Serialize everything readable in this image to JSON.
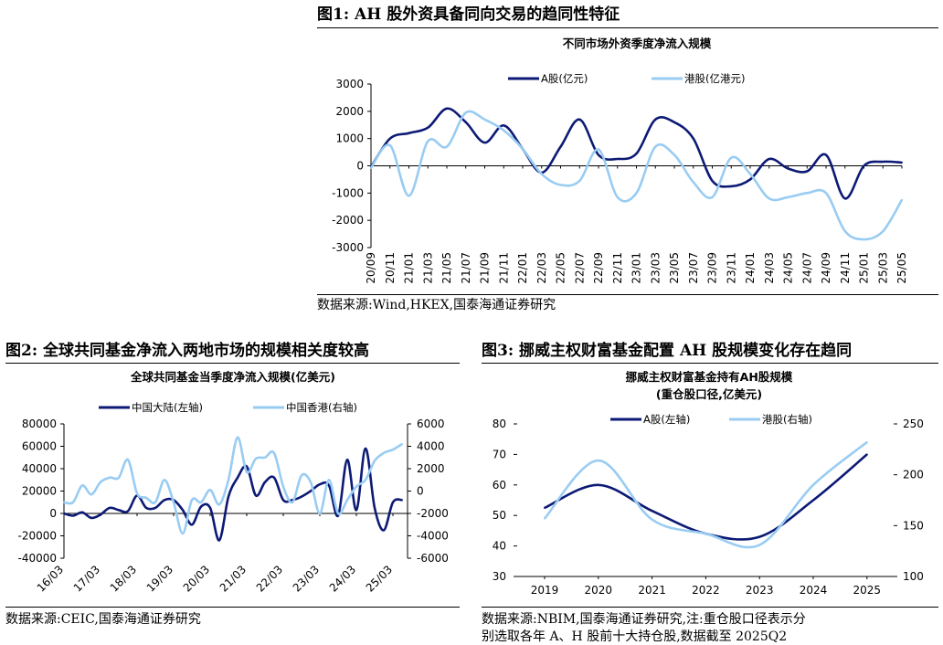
{
  "fig1": {
    "title": "图1:  AH 股外资具备同向交易的趋同性特征",
    "source": "数据来源:Wind,HKEX,国泰海通证券研究"
  },
  "fig2": {
    "title": "图2:  全球共同基金净流入两地市场的规模相关度较高",
    "source": "数据来源:CEIC,国泰海通证券研究"
  },
  "fig3": {
    "title": "图3:  挪威主权财富基金配置 AH 股规模变化存在趋同",
    "source": "数据来源:NBIM,国泰海通证券研究,注:重仓股口径表示分",
    "source2": "别选取各年 A、H 股前十大持仓股,数据截至 2025Q2"
  },
  "colors": {
    "dark": "#0d1a75",
    "light": "#99ccf2"
  },
  "chart_data": [
    {
      "type": "line",
      "title": "不同市场外资季度净流入规模",
      "categories": [
        "20/09",
        "20/11",
        "21/01",
        "21/03",
        "21/05",
        "21/07",
        "21/09",
        "21/11",
        "22/01",
        "22/03",
        "22/05",
        "22/07",
        "22/09",
        "22/11",
        "23/01",
        "23/03",
        "23/05",
        "23/07",
        "23/09",
        "23/11",
        "24/01",
        "24/03",
        "24/05",
        "24/07",
        "24/09",
        "24/11",
        "25/01",
        "25/03",
        "25/05"
      ],
      "ylim": [
        -3000,
        3000
      ],
      "yticks": [
        3000,
        2000,
        1000,
        0,
        -1000,
        -2000,
        -3000
      ],
      "grid": false,
      "legend": "top",
      "series": [
        {
          "name": "A股(亿元)",
          "color": "dark",
          "values": [
            -50,
            1000,
            1200,
            1400,
            2100,
            1600,
            850,
            1480,
            620,
            -250,
            700,
            1700,
            400,
            250,
            450,
            1700,
            1600,
            1000,
            -550,
            -750,
            -500,
            250,
            -100,
            -200,
            400,
            -1200,
            0,
            150,
            120
          ]
        },
        {
          "name": "港股(亿港元)",
          "color": "light",
          "values": [
            -80,
            750,
            -1100,
            900,
            700,
            1950,
            1700,
            1300,
            620,
            -300,
            -700,
            -550,
            600,
            -1150,
            -1000,
            700,
            400,
            -600,
            -1150,
            300,
            -300,
            -1200,
            -1150,
            -1000,
            -1000,
            -2400,
            -2700,
            -2400,
            -1250
          ]
        }
      ]
    },
    {
      "type": "line",
      "title": "全球共同基金当季度净流入规模(亿美元)",
      "categories": [
        "16/03",
        "17/03",
        "18/03",
        "19/03",
        "20/03",
        "21/03",
        "22/03",
        "23/03",
        "24/03",
        "25/03"
      ],
      "ylim_left": [
        -40000,
        80000
      ],
      "yticks_left": [
        80000,
        60000,
        40000,
        20000,
        0,
        -20000,
        -40000
      ],
      "ylim_right": [
        -6000,
        6000
      ],
      "yticks_right": [
        6000,
        4000,
        2000,
        0,
        -2000,
        -4000,
        -6000
      ],
      "grid": false,
      "legend": "top",
      "series": [
        {
          "name": "中国大陆(左轴)",
          "color": "dark",
          "axis": "left",
          "x": [
            0,
            0.25,
            0.5,
            0.75,
            1,
            1.25,
            1.5,
            1.75,
            2,
            2.25,
            2.5,
            2.75,
            3,
            3.25,
            3.5,
            3.75,
            4,
            4.25,
            4.5,
            4.75,
            5,
            5.25,
            5.5,
            5.75,
            6,
            6.25,
            6.5,
            6.75,
            7,
            7.25,
            7.5,
            7.75,
            8,
            8.25,
            8.5,
            8.75,
            9,
            9.25
          ],
          "values": [
            0,
            -2000,
            1000,
            -4000,
            -1000,
            5000,
            3000,
            2000,
            16000,
            5000,
            5000,
            12000,
            12000,
            3000,
            -10000,
            6000,
            5000,
            -24000,
            15000,
            32000,
            42000,
            16000,
            28000,
            32000,
            12000,
            12000,
            15000,
            20000,
            26000,
            25000,
            -2000,
            48000,
            3000,
            58000,
            5000,
            -15000,
            10000,
            12000
          ]
        },
        {
          "name": "中国香港(右轴)",
          "color": "light",
          "axis": "right",
          "x": [
            0,
            0.25,
            0.5,
            0.75,
            1,
            1.25,
            1.5,
            1.75,
            2,
            2.25,
            2.5,
            2.75,
            3,
            3.25,
            3.5,
            3.75,
            4,
            4.25,
            4.5,
            4.75,
            5,
            5.25,
            5.5,
            5.75,
            6,
            6.25,
            6.5,
            6.75,
            7,
            7.25,
            7.5,
            7.75,
            8,
            8.25,
            8.5,
            8.75,
            9,
            9.25
          ],
          "values": [
            -1000,
            -1000,
            500,
            -300,
            800,
            1200,
            1200,
            2800,
            -200,
            -600,
            -1000,
            1000,
            -1000,
            -3800,
            -800,
            -1000,
            100,
            -1200,
            1000,
            4800,
            1700,
            2900,
            3000,
            3400,
            400,
            -1000,
            1400,
            800,
            -2000,
            1000,
            -2000,
            -800,
            400,
            1000,
            2700,
            3400,
            3700,
            4200
          ]
        }
      ]
    },
    {
      "type": "line",
      "title": "挪威主权财富基金持有AH股规模",
      "subtitle": "(重仓股口径,亿美元)",
      "categories": [
        "2019",
        "2020",
        "2021",
        "2022",
        "2023",
        "2024",
        "2025"
      ],
      "ylim_left": [
        30,
        80
      ],
      "yticks_left": [
        80,
        70,
        60,
        50,
        40,
        30
      ],
      "ylim_right": [
        100,
        250
      ],
      "yticks_right": [
        250,
        200,
        150,
        100
      ],
      "grid": false,
      "legend": "top",
      "series": [
        {
          "name": "A股(左轴)",
          "color": "dark",
          "axis": "left",
          "values": [
            52.5,
            60,
            51.5,
            44,
            43,
            55,
            70
          ]
        },
        {
          "name": "港股(右轴)",
          "color": "light",
          "axis": "right",
          "values": [
            157,
            214,
            156,
            142,
            131,
            190,
            232
          ]
        }
      ]
    }
  ]
}
